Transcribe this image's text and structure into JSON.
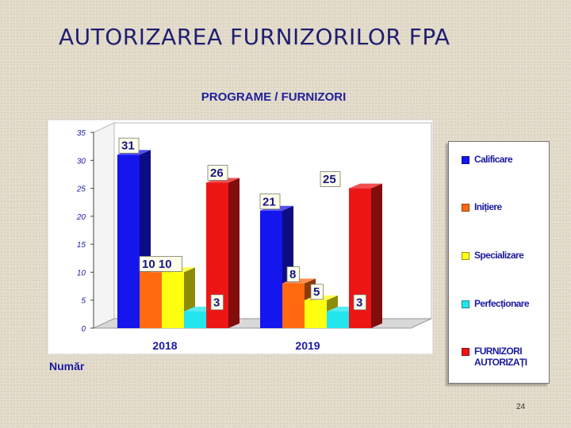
{
  "slide": {
    "title": "AUTORIZAREA FURNIZORILOR FPA",
    "page_number": "24"
  },
  "chart_data": {
    "type": "bar",
    "title": "PROGRAME / FURNIZORI",
    "xlabel": "",
    "ylabel": "Număr",
    "categories": [
      "2018",
      "2019"
    ],
    "ylim": [
      0,
      35
    ],
    "yticks": [
      0,
      5,
      10,
      15,
      20,
      25,
      30,
      35
    ],
    "grid": false,
    "legend_position": "right",
    "series": [
      {
        "name": "Calificare",
        "color": "#1515ee",
        "values": [
          31,
          21
        ]
      },
      {
        "name": "Inițiere",
        "color": "#ff6a10",
        "values": [
          10,
          8
        ]
      },
      {
        "name": "Specializare",
        "color": "#ffff10",
        "values": [
          10,
          5
        ]
      },
      {
        "name": "Perfecționare",
        "color": "#22e5ee",
        "values": [
          3,
          3
        ]
      },
      {
        "name": "FURNIZORI AUTORIZAȚI",
        "color": "#ee1515",
        "values": [
          26,
          25
        ]
      }
    ],
    "data_labels": [
      {
        "text": "31",
        "series": 0,
        "category": 0
      },
      {
        "text": "10 10",
        "series": 1,
        "category": 0
      },
      {
        "text": "3",
        "series": 3,
        "category": 0
      },
      {
        "text": "26",
        "series": 4,
        "category": 0
      },
      {
        "text": "21",
        "series": 0,
        "category": 1
      },
      {
        "text": "8",
        "series": 1,
        "category": 1
      },
      {
        "text": "5",
        "series": 2,
        "category": 1
      },
      {
        "text": "3",
        "series": 3,
        "category": 1
      },
      {
        "text": "25",
        "series": 4,
        "category": 1
      }
    ]
  }
}
